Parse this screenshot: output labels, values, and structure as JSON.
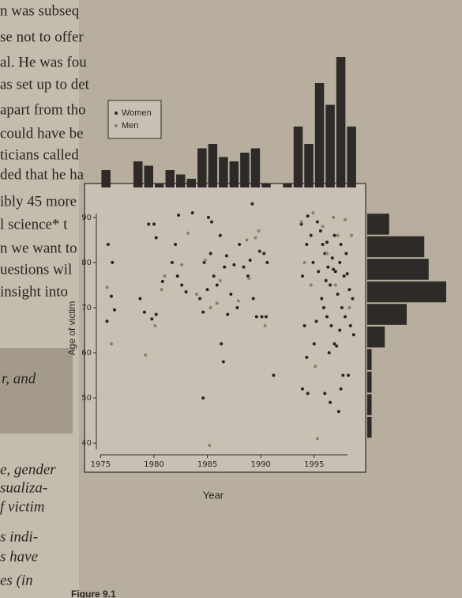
{
  "chart_data": {
    "type": "scatter",
    "x_label": "Year",
    "y_label": "Age of victim",
    "xlim": [
      1974.6,
      1999.6
    ],
    "ylim": [
      37.4,
      96.1
    ],
    "xticks": [
      1975,
      1980,
      1985,
      1990,
      1995
    ],
    "yticks": [
      40,
      50,
      60,
      70,
      80,
      90
    ],
    "legend": "top-left",
    "series": [
      {
        "name": "Women",
        "color": "#2a2521",
        "x": [
          1975.7,
          1976.1,
          1976.0,
          1975.6,
          1976.3,
          1978.7,
          1979.1,
          1979.5,
          1980.0,
          1980.2,
          1979.8,
          1980.2,
          1980.8,
          1982.0,
          1981.7,
          1982.2,
          1982.6,
          1983.0,
          1982.3,
          1983.6,
          1984.3,
          1984.7,
          1984.6,
          1985.0,
          1985.3,
          1985.6,
          1985.9,
          1986.2,
          1986.6,
          1986.9,
          1986.8,
          1987.2,
          1987.5,
          1987.8,
          1988.0,
          1988.4,
          1988.8,
          1989.0,
          1989.3,
          1989.6,
          1989.9,
          1990.3,
          1990.6,
          1990.1,
          1990.5,
          1989.2,
          1986.3,
          1986.5,
          1984.6,
          1991.2,
          1985.1,
          1985.4,
          1993.8,
          1993.9,
          1994.3,
          1994.4,
          1994.7,
          1994.9,
          1993.9,
          1994.4,
          1994.3,
          1994.1,
          1995.3,
          1995.6,
          1995.8,
          1995.4,
          1995.7,
          1996.0,
          1996.1,
          1996.3,
          1996.5,
          1996.7,
          1996.9,
          1997.0,
          1997.2,
          1997.4,
          1997.6,
          1997.8,
          1998.0,
          1998.3,
          1998.6,
          1996.2,
          1996.6,
          1996.9,
          1997.4,
          1997.9,
          1998.4,
          1995.9,
          1995.2,
          1996.0,
          1996.5,
          1997.3,
          1997.5,
          1998.2,
          1996.4,
          1997.7,
          1998.7,
          1997.1,
          1995.0,
          1996.8,
          1996.2,
          1997.5,
          1998.1
        ],
        "values": [
          84,
          80,
          72.5,
          67,
          69.5,
          72,
          69,
          88.5,
          88.5,
          85.5,
          67.5,
          68.5,
          75.8,
          84,
          80,
          77,
          75,
          73.5,
          90.5,
          91,
          72,
          80,
          69,
          74,
          82,
          77,
          75,
          86,
          79,
          68.5,
          81.5,
          73,
          79.5,
          70,
          84,
          79,
          77,
          80.5,
          72,
          68,
          82.5,
          82,
          80,
          68,
          68,
          93,
          62,
          58,
          50,
          55,
          90,
          89,
          88.5,
          77,
          84,
          90.3,
          86,
          80,
          52,
          51,
          59,
          66,
          89,
          87,
          84,
          78,
          72,
          82,
          76,
          79,
          75,
          81,
          86,
          78,
          73,
          80,
          70,
          77,
          82,
          74,
          72,
          68,
          66,
          62,
          65,
          68,
          66,
          70,
          67,
          51,
          49,
          47,
          52,
          55,
          60,
          55,
          64,
          61.5,
          62,
          78.5,
          84.5,
          84,
          77.5
        ]
      },
      {
        "name": "Men",
        "color": "#8d7c69",
        "x": [
          1975.6,
          1976.0,
          1979.2,
          1980.1,
          1980.7,
          1981.0,
          1982.6,
          1983.2,
          1984.0,
          1984.8,
          1985.3,
          1985.9,
          1986.2,
          1987.9,
          1988.7,
          1988.9,
          1989.5,
          1990.4,
          1985.2,
          1993.8,
          1994.9,
          1995.1,
          1995.8,
          1996.2,
          1997.0,
          1997.9,
          1998.5,
          1994.7,
          1995.3,
          1997.2,
          1998.3,
          1994.1,
          1996.8,
          1989.8
        ],
        "values": [
          74.5,
          62,
          59.5,
          66,
          74,
          77,
          79.5,
          86.5,
          73,
          80.5,
          70,
          71,
          76,
          71.5,
          85,
          76.5,
          85.5,
          66,
          39.5,
          89,
          91,
          57,
          88,
          82,
          75,
          89.5,
          86,
          75,
          41,
          86,
          70,
          80,
          90,
          87
        ]
      }
    ],
    "top_histogram": {
      "color": "#2e2a27",
      "bins": [
        1975,
        1976,
        1977,
        1978,
        1979,
        1980,
        1981,
        1982,
        1983,
        1984,
        1985,
        1986,
        1987,
        1988,
        1989,
        1990,
        1991,
        1992,
        1993,
        1994,
        1995,
        1996,
        1997,
        1998,
        1999
      ],
      "counts": [
        4,
        0,
        0,
        6,
        5,
        1,
        4,
        3,
        2,
        9,
        10,
        7,
        6,
        8,
        9,
        1,
        0,
        1,
        14,
        10,
        24,
        19,
        30,
        14
      ]
    },
    "right_histogram": {
      "color": "#2e2a27",
      "bins": [
        41,
        46,
        51,
        56,
        61,
        66,
        71,
        76,
        81,
        86,
        91
      ],
      "counts": [
        1,
        1,
        1,
        1,
        4,
        9,
        18,
        14,
        13,
        5
      ]
    }
  },
  "page_text": {
    "lines": [
      "n was subseq",
      "se not to offer",
      "al. He was fou",
      "as set up to det",
      "apart from tho",
      "could have be",
      "ticians called",
      "ded that he ha",
      "ibly 45 more",
      "l science* t",
      "n we want to",
      "uestions wil",
      "insight into"
    ],
    "box": "r, and",
    "lower": [
      "e, gender",
      "sualiza-",
      "f victim",
      "s indi-",
      "s have",
      "es (in"
    ],
    "caption": "Figure 9.1"
  }
}
